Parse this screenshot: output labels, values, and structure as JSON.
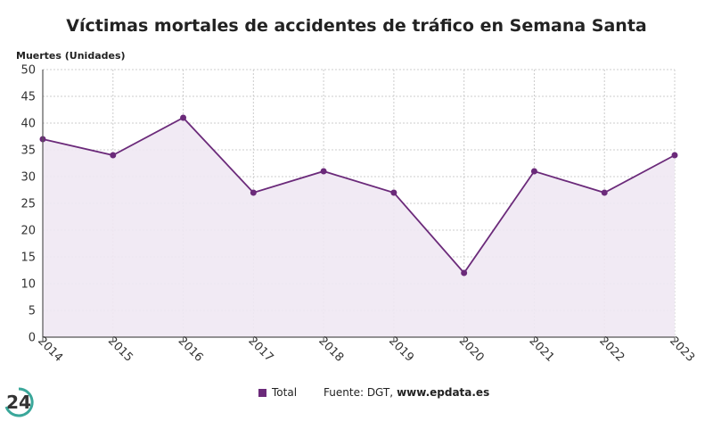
{
  "chart_data": {
    "type": "line",
    "title": "Víctimas mortales de accidentes de tráfico en Semana Santa",
    "ylabel": "Muertes (Unidades)",
    "xlabel": "",
    "categories": [
      "2014",
      "2015",
      "2016",
      "2017",
      "2018",
      "2019",
      "2020",
      "2021",
      "2022",
      "2023"
    ],
    "series": [
      {
        "name": "Total",
        "values": [
          37,
          34,
          41,
          27,
          31,
          27,
          12,
          31,
          27,
          34
        ]
      }
    ],
    "ylim": [
      0,
      50
    ],
    "yticks": [
      0,
      5,
      10,
      15,
      20,
      25,
      30,
      35,
      40,
      45,
      50
    ],
    "grid": true,
    "legend_position": "bottom-center"
  },
  "legend": {
    "label": "Total"
  },
  "source": {
    "prefix": "Fuente: DGT,",
    "domain": "www.epdata.es"
  },
  "logo": {
    "text": "24"
  },
  "colors": {
    "series": "#6b2a7a",
    "fill": "#efe8f3",
    "grid": "#cccccc",
    "axis": "#555555"
  }
}
